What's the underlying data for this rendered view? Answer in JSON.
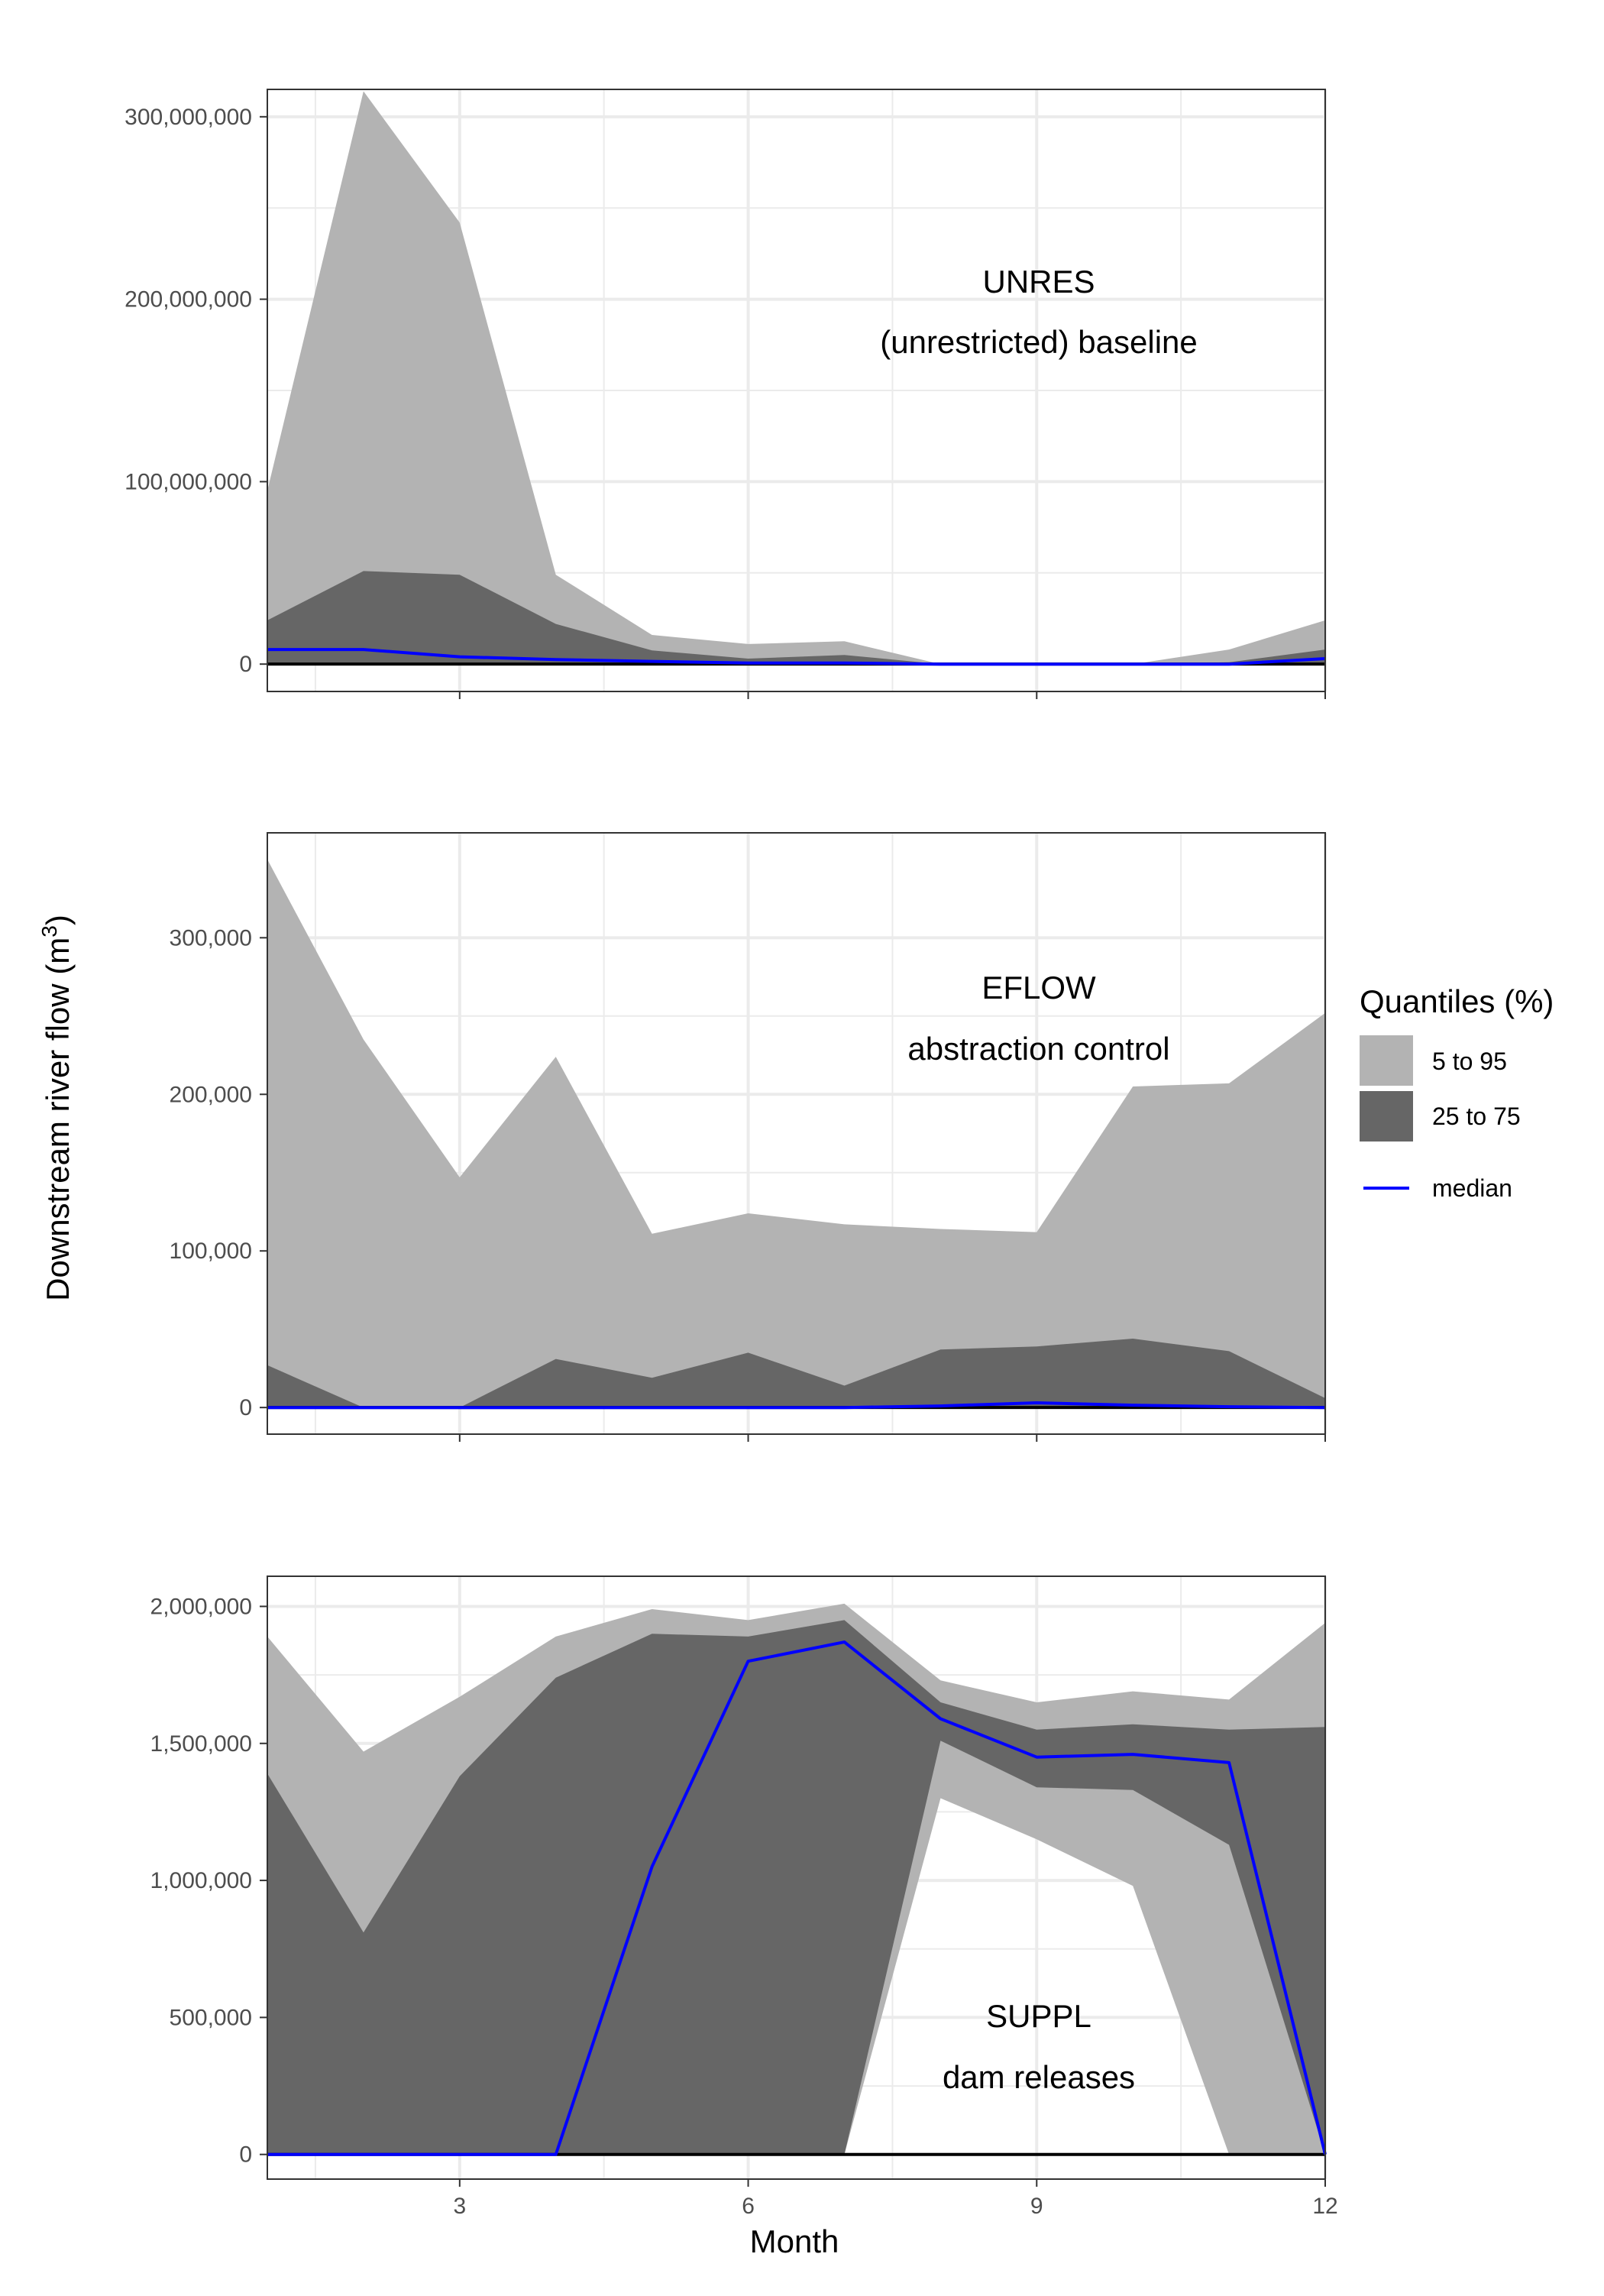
{
  "y_axis_title": "Downstream river flow (m",
  "y_axis_title_sup": "3",
  "y_axis_title_close": ")",
  "x_axis_title": "Month",
  "legend": {
    "title": "Quantiles (%)",
    "items": [
      {
        "label": "5 to 95",
        "color": "#b3b3b3",
        "kind": "fill"
      },
      {
        "label": "25 to 75",
        "color": "#666666",
        "kind": "fill"
      },
      {
        "label": "median",
        "color": "#0000ff",
        "kind": "line"
      }
    ]
  },
  "colors": {
    "band_5_95": "#b3b3b3",
    "band_25_75": "#666666",
    "median": "#0000ff",
    "zero_line": "#000000",
    "grid": "#ebebeb"
  },
  "chart_data": [
    {
      "type": "area",
      "id": "unres",
      "annotation": [
        "UNRES",
        "(unrestricted) baseline"
      ],
      "x": [
        1,
        2,
        3,
        4,
        5,
        6,
        7,
        8,
        9,
        10,
        11,
        12
      ],
      "xlim": [
        1,
        12
      ],
      "ylim": [
        -15000000,
        315000000
      ],
      "x_ticks": [
        3,
        6,
        9,
        12
      ],
      "x_tick_labels": [
        "3",
        "6",
        "9",
        "12"
      ],
      "y_ticks": [
        0,
        100000000,
        200000000,
        300000000
      ],
      "y_tick_labels": [
        "0",
        "100,000,000",
        "200,000,000",
        "300,000,000"
      ],
      "show_x_tick_labels": false,
      "q05": [
        0,
        0,
        0,
        0,
        0,
        0,
        0,
        0,
        0,
        0,
        0,
        0
      ],
      "q95": [
        95000000,
        314000000,
        242000000,
        49000000,
        16000000,
        11000000,
        12500000,
        0,
        0,
        0,
        8000000,
        24000000
      ],
      "q25": [
        0,
        0,
        0,
        0,
        0,
        0,
        0,
        0,
        0,
        0,
        0,
        0
      ],
      "q75": [
        24000000,
        51000000,
        49000000,
        22000000,
        7500000,
        3000000,
        5000000,
        0,
        0,
        0,
        1000000,
        8000000
      ],
      "median": [
        8000000,
        8000000,
        4000000,
        2500000,
        1500000,
        600000,
        600000,
        0,
        0,
        0,
        0,
        3000000
      ]
    },
    {
      "type": "area",
      "id": "eflow",
      "annotation": [
        "EFLOW",
        "abstraction control"
      ],
      "x": [
        1,
        2,
        3,
        4,
        5,
        6,
        7,
        8,
        9,
        10,
        11,
        12
      ],
      "xlim": [
        1,
        12
      ],
      "ylim": [
        -17000.0,
        367000
      ],
      "x_ticks": [
        3,
        6,
        9,
        12
      ],
      "x_tick_labels": [
        "3",
        "6",
        "9",
        "12"
      ],
      "y_ticks": [
        0,
        100000,
        200000,
        300000
      ],
      "y_tick_labels": [
        "0",
        "100,000",
        "200,000",
        "300,000"
      ],
      "show_x_tick_labels": false,
      "q05": [
        0,
        0,
        0,
        0,
        0,
        0,
        0,
        0,
        0,
        0,
        0,
        0
      ],
      "q95": [
        350000,
        235000,
        147000,
        224000,
        111000,
        124000,
        117000,
        114000,
        112000,
        205000,
        207000,
        252000
      ],
      "q25": [
        0,
        0,
        0,
        0,
        0,
        0,
        0,
        0,
        0,
        0,
        0,
        0
      ],
      "q75": [
        27000,
        0,
        0,
        31000,
        19000,
        35000,
        14000,
        37000,
        39000,
        44000,
        36000,
        6000
      ],
      "median": [
        0,
        0,
        0,
        0,
        0,
        0,
        0,
        1000,
        3000,
        1500,
        500,
        0
      ]
    },
    {
      "type": "area",
      "id": "suppl",
      "annotation": [
        "SUPPL",
        "dam releases"
      ],
      "x": [
        1,
        2,
        3,
        4,
        5,
        6,
        7,
        8,
        9,
        10,
        11,
        12
      ],
      "xlim": [
        1,
        12
      ],
      "ylim": [
        -90000,
        2110000
      ],
      "x_ticks": [
        3,
        6,
        9,
        12
      ],
      "x_tick_labels": [
        "3",
        "6",
        "9",
        "12"
      ],
      "y_ticks": [
        0,
        500000,
        1000000,
        1500000,
        2000000
      ],
      "y_tick_labels": [
        "0",
        "500,000",
        "1,000,000",
        "1,500,000",
        "2,000,000"
      ],
      "show_x_tick_labels": true,
      "q05": [
        0,
        0,
        0,
        0,
        0,
        0,
        0,
        1300000,
        1150000,
        980000,
        0,
        0
      ],
      "q95": [
        1890000,
        1470000,
        1670000,
        1890000,
        1990000,
        1950000,
        2010000,
        1730000,
        1650000,
        1690000,
        1660000,
        1940000
      ],
      "q25": [
        0,
        0,
        0,
        0,
        0,
        0,
        0,
        1510000,
        1340000,
        1330000,
        1130000,
        0
      ],
      "q75": [
        1390000,
        810000,
        1380000,
        1740000,
        1900000,
        1890000,
        1950000,
        1650000,
        1550000,
        1570000,
        1550000,
        1560000
      ],
      "median": [
        0,
        0,
        0,
        0,
        1050000,
        1800000,
        1870000,
        1590000,
        1450000,
        1460000,
        1430000,
        0
      ]
    }
  ]
}
